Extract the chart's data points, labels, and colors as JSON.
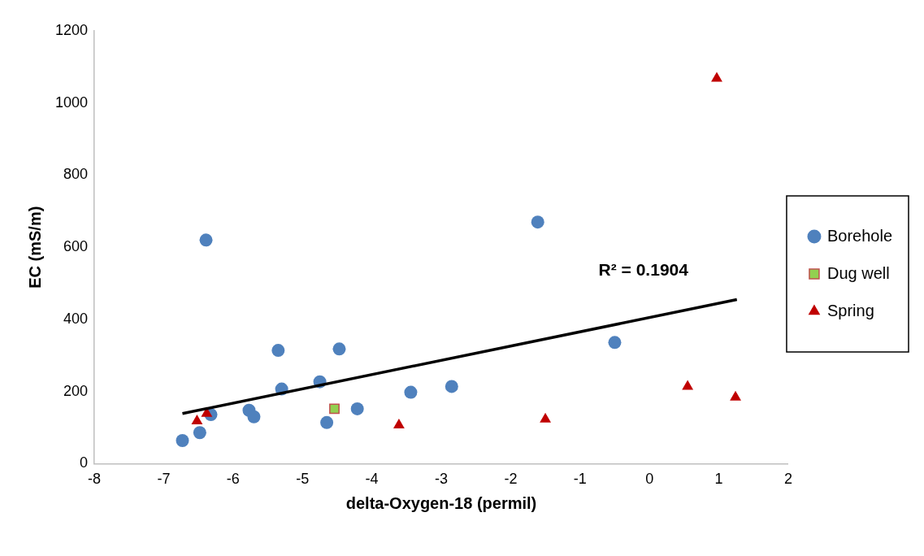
{
  "chart_data": {
    "type": "scatter",
    "xlabel": "delta-Oxygen-18 (permil)",
    "ylabel": "EC (mS/m)",
    "xlim": [
      -8,
      2
    ],
    "xticks": [
      -8,
      -7,
      -6,
      -5,
      -4,
      -3,
      -2,
      -1,
      0,
      1,
      2
    ],
    "ylim": [
      0,
      1200
    ],
    "yticks": [
      0,
      200,
      400,
      600,
      800,
      1000,
      1200
    ],
    "grid": false,
    "legend": "right",
    "annotations": [
      "R² = 0.1904"
    ],
    "series": [
      {
        "name": "Borehole",
        "color": "#4f81bd",
        "marker": "circle",
        "x": [
          -6.73,
          -6.48,
          -6.39,
          -6.32,
          -5.77,
          -5.7,
          -5.35,
          -5.3,
          -4.75,
          -4.65,
          -4.47,
          -4.21,
          -3.44,
          -2.85,
          -1.61,
          -0.5
        ],
        "values": [
          64,
          86,
          620,
          136,
          148,
          130,
          314,
          207,
          227,
          114,
          318,
          152,
          198,
          214,
          670,
          336
        ]
      },
      {
        "name": "Dug well",
        "color": "#92d050",
        "marker": "square",
        "x": [
          -4.54
        ],
        "values": [
          152
        ]
      },
      {
        "name": "Spring",
        "color": "#c00000",
        "marker": "triangle",
        "x": [
          -6.52,
          -6.38,
          -3.61,
          -1.5,
          0.97,
          0.55,
          1.24
        ],
        "values": [
          118,
          139,
          107,
          123,
          1068,
          214,
          184
        ]
      },
      {
        "type": "line",
        "color": "#000000",
        "marker": "none",
        "x": [
          -6.73,
          1.26
        ],
        "values": [
          139,
          455
        ]
      }
    ]
  }
}
